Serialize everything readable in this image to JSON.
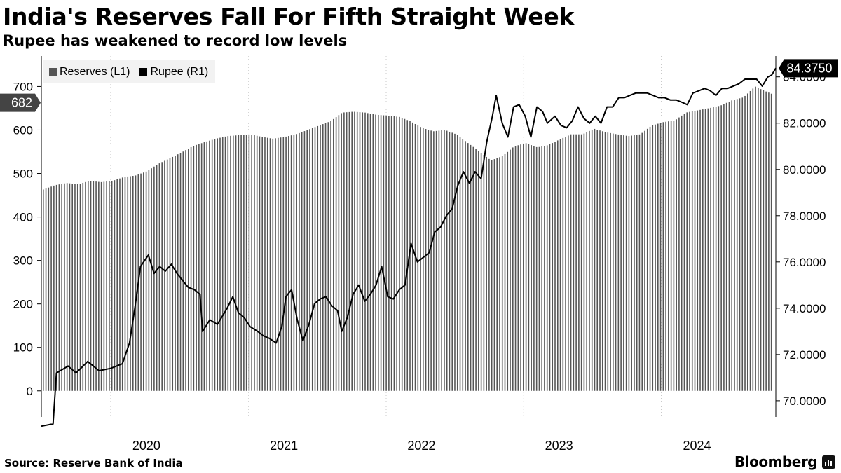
{
  "title": "India's Reserves Fall For Fifth Straight Week",
  "subtitle": "Rupee has weakened to record low levels",
  "legend": [
    {
      "label": "Reserves (L1)",
      "color": "#555555"
    },
    {
      "label": "Rupee (R1)",
      "color": "#000000"
    }
  ],
  "source": "Source: Reserve Bank of India",
  "brand": "Bloomberg",
  "chart_data": {
    "type": "bar+line",
    "x_range": [
      "2019-07-01",
      "2024-10-31"
    ],
    "x_tick_labels": [
      "2020",
      "2021",
      "2022",
      "2023",
      "2024"
    ],
    "left_axis": {
      "label": "Reserves (L1)",
      "range": [
        -60,
        770
      ],
      "ticks": [
        0,
        100,
        200,
        300,
        400,
        500,
        600,
        700
      ],
      "last_value_label": "682"
    },
    "right_axis": {
      "label": "Rupee (R1)",
      "range": [
        69.3,
        84.9
      ],
      "ticks": [
        "70.0000",
        "72.0000",
        "74.0000",
        "76.0000",
        "78.0000",
        "80.0000",
        "82.0000",
        "84.0000"
      ],
      "last_value_label": "84.3750"
    },
    "series": [
      {
        "name": "Reserves (L1)",
        "type": "bar",
        "axis": "left",
        "color": "#555555",
        "points": [
          [
            "2019-07-01",
            463
          ],
          [
            "2019-08-01",
            473
          ],
          [
            "2019-09-01",
            478
          ],
          [
            "2019-10-01",
            475
          ],
          [
            "2019-11-01",
            483
          ],
          [
            "2019-12-01",
            480
          ],
          [
            "2020-01-01",
            483
          ],
          [
            "2020-02-01",
            492
          ],
          [
            "2020-03-01",
            495
          ],
          [
            "2020-04-01",
            505
          ],
          [
            "2020-05-01",
            522
          ],
          [
            "2020-06-01",
            535
          ],
          [
            "2020-07-01",
            548
          ],
          [
            "2020-08-01",
            563
          ],
          [
            "2020-09-01",
            572
          ],
          [
            "2020-10-01",
            580
          ],
          [
            "2020-11-01",
            586
          ],
          [
            "2020-12-01",
            588
          ],
          [
            "2021-01-01",
            590
          ],
          [
            "2021-02-01",
            584
          ],
          [
            "2021-03-01",
            580
          ],
          [
            "2021-04-01",
            584
          ],
          [
            "2021-05-01",
            590
          ],
          [
            "2021-06-01",
            600
          ],
          [
            "2021-07-01",
            610
          ],
          [
            "2021-08-01",
            620
          ],
          [
            "2021-09-01",
            640
          ],
          [
            "2021-10-01",
            642
          ],
          [
            "2021-11-01",
            640
          ],
          [
            "2021-12-01",
            635
          ],
          [
            "2022-01-01",
            633
          ],
          [
            "2022-02-01",
            630
          ],
          [
            "2022-03-01",
            620
          ],
          [
            "2022-04-01",
            605
          ],
          [
            "2022-05-01",
            597
          ],
          [
            "2022-06-01",
            600
          ],
          [
            "2022-07-01",
            590
          ],
          [
            "2022-08-01",
            570
          ],
          [
            "2022-09-01",
            550
          ],
          [
            "2022-10-01",
            530
          ],
          [
            "2022-11-01",
            540
          ],
          [
            "2022-12-01",
            562
          ],
          [
            "2023-01-01",
            570
          ],
          [
            "2023-02-01",
            560
          ],
          [
            "2023-03-01",
            565
          ],
          [
            "2023-04-01",
            578
          ],
          [
            "2023-05-01",
            590
          ],
          [
            "2023-06-01",
            590
          ],
          [
            "2023-07-01",
            603
          ],
          [
            "2023-08-01",
            595
          ],
          [
            "2023-09-01",
            590
          ],
          [
            "2023-10-01",
            586
          ],
          [
            "2023-11-01",
            590
          ],
          [
            "2023-12-01",
            610
          ],
          [
            "2024-01-01",
            618
          ],
          [
            "2024-02-01",
            622
          ],
          [
            "2024-03-01",
            640
          ],
          [
            "2024-04-01",
            645
          ],
          [
            "2024-05-01",
            650
          ],
          [
            "2024-06-01",
            656
          ],
          [
            "2024-07-01",
            668
          ],
          [
            "2024-08-01",
            675
          ],
          [
            "2024-09-01",
            700
          ],
          [
            "2024-10-01",
            688
          ],
          [
            "2024-10-18",
            682
          ]
        ]
      },
      {
        "name": "Rupee (R1)",
        "type": "line",
        "axis": "right",
        "color": "#000000",
        "points": [
          [
            "2019-07-01",
            68.9
          ],
          [
            "2019-08-01",
            69.0
          ],
          [
            "2019-08-10",
            71.2
          ],
          [
            "2019-09-10",
            71.5
          ],
          [
            "2019-10-01",
            71.2
          ],
          [
            "2019-11-01",
            71.7
          ],
          [
            "2019-12-01",
            71.3
          ],
          [
            "2020-01-01",
            71.4
          ],
          [
            "2020-02-01",
            71.6
          ],
          [
            "2020-02-20",
            72.5
          ],
          [
            "2020-03-05",
            74.0
          ],
          [
            "2020-03-20",
            75.8
          ],
          [
            "2020-04-10",
            76.3
          ],
          [
            "2020-04-25",
            75.5
          ],
          [
            "2020-05-10",
            75.8
          ],
          [
            "2020-05-25",
            75.6
          ],
          [
            "2020-06-10",
            75.9
          ],
          [
            "2020-06-25",
            75.5
          ],
          [
            "2020-07-10",
            75.2
          ],
          [
            "2020-07-25",
            74.9
          ],
          [
            "2020-08-10",
            74.8
          ],
          [
            "2020-08-25",
            74.6
          ],
          [
            "2020-09-01",
            73.0
          ],
          [
            "2020-09-20",
            73.5
          ],
          [
            "2020-10-10",
            73.3
          ],
          [
            "2020-10-25",
            73.7
          ],
          [
            "2020-11-05",
            74.0
          ],
          [
            "2020-11-20",
            74.5
          ],
          [
            "2020-12-05",
            73.8
          ],
          [
            "2020-12-20",
            73.6
          ],
          [
            "2021-01-05",
            73.2
          ],
          [
            "2021-01-25",
            73.0
          ],
          [
            "2021-02-10",
            72.8
          ],
          [
            "2021-02-25",
            72.7
          ],
          [
            "2021-03-15",
            72.5
          ],
          [
            "2021-03-30",
            73.2
          ],
          [
            "2021-04-10",
            74.5
          ],
          [
            "2021-04-25",
            74.8
          ],
          [
            "2021-05-10",
            73.5
          ],
          [
            "2021-05-25",
            72.6
          ],
          [
            "2021-06-10",
            73.3
          ],
          [
            "2021-06-25",
            74.2
          ],
          [
            "2021-07-10",
            74.4
          ],
          [
            "2021-07-25",
            74.5
          ],
          [
            "2021-08-10",
            74.1
          ],
          [
            "2021-08-25",
            73.9
          ],
          [
            "2021-09-05",
            73.0
          ],
          [
            "2021-09-20",
            73.6
          ],
          [
            "2021-10-05",
            74.6
          ],
          [
            "2021-10-20",
            75.0
          ],
          [
            "2021-11-05",
            74.3
          ],
          [
            "2021-11-20",
            74.6
          ],
          [
            "2021-12-05",
            75.0
          ],
          [
            "2021-12-20",
            75.8
          ],
          [
            "2022-01-05",
            74.5
          ],
          [
            "2022-01-20",
            74.4
          ],
          [
            "2022-02-05",
            74.8
          ],
          [
            "2022-02-20",
            75.0
          ],
          [
            "2022-03-08",
            76.8
          ],
          [
            "2022-03-25",
            76.0
          ],
          [
            "2022-04-10",
            76.2
          ],
          [
            "2022-04-25",
            76.4
          ],
          [
            "2022-05-10",
            77.3
          ],
          [
            "2022-05-25",
            77.5
          ],
          [
            "2022-06-10",
            78.0
          ],
          [
            "2022-06-25",
            78.3
          ],
          [
            "2022-07-10",
            79.3
          ],
          [
            "2022-07-25",
            79.9
          ],
          [
            "2022-08-10",
            79.4
          ],
          [
            "2022-08-25",
            79.9
          ],
          [
            "2022-09-10",
            79.6
          ],
          [
            "2022-09-25",
            81.2
          ],
          [
            "2022-10-10",
            82.3
          ],
          [
            "2022-10-20",
            83.2
          ],
          [
            "2022-11-05",
            82.0
          ],
          [
            "2022-11-20",
            81.4
          ],
          [
            "2022-12-05",
            82.7
          ],
          [
            "2022-12-20",
            82.8
          ],
          [
            "2023-01-05",
            82.3
          ],
          [
            "2023-01-20",
            81.4
          ],
          [
            "2023-02-05",
            82.7
          ],
          [
            "2023-02-20",
            82.5
          ],
          [
            "2023-03-05",
            82.0
          ],
          [
            "2023-03-25",
            82.3
          ],
          [
            "2023-04-10",
            81.9
          ],
          [
            "2023-04-25",
            81.8
          ],
          [
            "2023-05-10",
            82.1
          ],
          [
            "2023-05-25",
            82.7
          ],
          [
            "2023-06-10",
            82.2
          ],
          [
            "2023-06-25",
            82.0
          ],
          [
            "2023-07-10",
            82.3
          ],
          [
            "2023-07-25",
            82.0
          ],
          [
            "2023-08-10",
            82.7
          ],
          [
            "2023-08-25",
            82.7
          ],
          [
            "2023-09-10",
            83.1
          ],
          [
            "2023-09-25",
            83.1
          ],
          [
            "2023-10-10",
            83.2
          ],
          [
            "2023-10-25",
            83.3
          ],
          [
            "2023-11-10",
            83.3
          ],
          [
            "2023-11-25",
            83.3
          ],
          [
            "2023-12-10",
            83.2
          ],
          [
            "2023-12-25",
            83.1
          ],
          [
            "2024-01-10",
            83.1
          ],
          [
            "2024-01-25",
            83.0
          ],
          [
            "2024-02-10",
            83.0
          ],
          [
            "2024-02-25",
            82.9
          ],
          [
            "2024-03-10",
            82.8
          ],
          [
            "2024-03-25",
            83.3
          ],
          [
            "2024-04-10",
            83.4
          ],
          [
            "2024-04-25",
            83.5
          ],
          [
            "2024-05-10",
            83.4
          ],
          [
            "2024-05-25",
            83.2
          ],
          [
            "2024-06-10",
            83.5
          ],
          [
            "2024-06-25",
            83.5
          ],
          [
            "2024-07-10",
            83.6
          ],
          [
            "2024-07-25",
            83.7
          ],
          [
            "2024-08-10",
            83.9
          ],
          [
            "2024-08-25",
            83.9
          ],
          [
            "2024-09-10",
            83.9
          ],
          [
            "2024-09-25",
            83.6
          ],
          [
            "2024-10-10",
            84.0
          ],
          [
            "2024-10-20",
            84.08
          ],
          [
            "2024-10-31",
            84.375
          ]
        ]
      }
    ],
    "grid": {
      "vertical": true,
      "style": "dotted"
    },
    "legend_position": "top-left"
  }
}
